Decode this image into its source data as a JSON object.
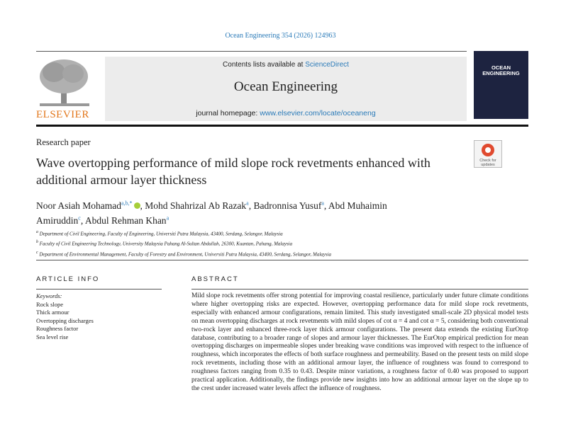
{
  "header": {
    "citation": "Ocean Engineering 354 (2026) 124963",
    "contents_prefix": "Contents lists available at",
    "contents_link": "ScienceDirect",
    "journal_name": "Ocean Engineering",
    "homepage_prefix": "journal homepage:",
    "homepage_url": "www.elsevier.com/locate/oceaneng",
    "publisher": "ELSEVIER",
    "cover_title": "OCEAN ENGINEERING",
    "badge": "Check for updates"
  },
  "article": {
    "type": "Research paper",
    "title": "Wave overtopping performance of mild slope rock revetments enhanced with additional armour layer thickness",
    "authors": [
      {
        "name": "Noor Asiah Mohamad",
        "sup": "a,b,*"
      },
      {
        "name": "Mohd Shahrizal Ab Razak",
        "sup": "a"
      },
      {
        "name": "Badronnisa Yusuf",
        "sup": "a"
      },
      {
        "name": "Abd Muhaimin Amiruddin",
        "sup": "c"
      },
      {
        "name": "Abdul Rehman Khan",
        "sup": "a"
      }
    ],
    "affiliations": [
      {
        "label": "a",
        "text": "Department of Civil Engineering, Faculty of Engineering, Universiti Putra Malaysia, 43400, Serdang, Selangor, Malaysia"
      },
      {
        "label": "b",
        "text": "Faculty of Civil Engineering Technology, University Malaysia Pahang Al-Sultan Abdullah, 26300, Kuantan, Pahang, Malaysia"
      },
      {
        "label": "c",
        "text": "Department of Environmental Management, Faculty of Forestry and Environment, Universiti Putra Malaysia, 43400, Serdang, Selangor, Malaysia"
      }
    ]
  },
  "article_info": {
    "heading": "ARTICLE INFO",
    "keywords_label": "Keywords:",
    "keywords": [
      "Rock slope",
      "Thick armour",
      "Overtopping discharges",
      "Roughness factor",
      "Sea level rise"
    ]
  },
  "abstract": {
    "heading": "ABSTRACT",
    "text": "Mild slope rock revetments offer strong potential for improving coastal resilience, particularly under future climate conditions where higher overtopping risks are expected. However, overtopping performance data for mild slope rock revetments, especially with enhanced armour configurations, remain limited. This study investigated small-scale 2D physical model tests on mean overtopping discharges at rock revetments with mild slopes of cot α = 4 and cot α = 5, considering both conventional two-rock layer and enhanced three-rock layer thick armour configurations. The present data extends the existing EurOtop database, contributing to a broader range of slopes and armour layer thicknesses. The EurOtop empirical prediction for mean overtopping discharges on impermeable slopes under breaking wave conditions was improved with respect to the influence of roughness, which incorporates the effects of both surface roughness and permeability. Based on the present tests on mild slope rock revetments, including those with an additional armour layer, the influence of roughness was found to correspond to roughness factors ranging from 0.35 to 0.43. Despite minor variations, a roughness factor of 0.40 was proposed to support practical application. Additionally, the findings provide new insights into how an additional armour layer on the slope up to the crest under increased water levels affect the influence of roughness."
  }
}
